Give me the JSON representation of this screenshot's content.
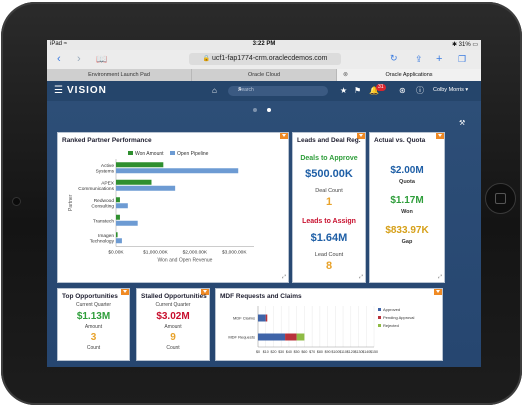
{
  "status_bar": {
    "device": "iPad",
    "time": "3:22 PM",
    "battery": "31%"
  },
  "browser": {
    "url": "ucf1-fap1774-crm.oraclecdemos.com"
  },
  "tabs": [
    {
      "label": "Environment Launch Pad"
    },
    {
      "label": "Oracle Cloud"
    },
    {
      "label": "Oracle Applications"
    }
  ],
  "app": {
    "logo": "VISION",
    "search_placeholder": "Search",
    "notifications": "31",
    "user": "Colby Morris"
  },
  "ranked": {
    "title": "Ranked Partner Performance",
    "legend": [
      "Won Amount",
      "Open Pipeline"
    ],
    "ylabel": "Partner",
    "xlabel": "Won and Open Revenue",
    "partners": [
      "Active Systems",
      "APEX Communications",
      "Redwood Consulting",
      "Transtech",
      "Imagen Technology"
    ],
    "ticks": [
      "$0.00K",
      "$1,000.00K",
      "$2,000.00K",
      "$3,000.00K"
    ]
  },
  "leads": {
    "title": "Leads and Deal Reg.",
    "deals_title": "Deals to Approve",
    "deals_amount": "$500.00K",
    "deals_count_label": "Deal Count",
    "deals_count": "1",
    "leads_title": "Leads to Assign",
    "leads_amount": "$1.64M",
    "leads_count_label": "Lead Count",
    "leads_count": "8"
  },
  "quota": {
    "title": "Actual vs. Quota",
    "quota_value": "$2.00M",
    "quota_label": "Quota",
    "won_value": "$1.17M",
    "won_label": "Won",
    "gap_value": "$833.97K",
    "gap_label": "Gap"
  },
  "top_opps": {
    "title": "Top Opportunities",
    "sub": "Current Quarter",
    "amount": "$1.13M",
    "amount_label": "Amount",
    "count": "3",
    "count_label": "Count"
  },
  "stalled": {
    "title": "Stalled Opportunities",
    "sub": "Current Quarter",
    "amount": "$3.02M",
    "amount_label": "Amount",
    "count": "9",
    "count_label": "Count"
  },
  "mdf": {
    "title": "MDF Requests and Claims",
    "rows": [
      "MDF Claims",
      "MDF Requests"
    ],
    "legend": [
      "Approved",
      "Pending Approval",
      "Rejected"
    ],
    "ticks": [
      "$0",
      "$10",
      "$20",
      "$30",
      "$40",
      "$50",
      "$60",
      "$70",
      "$80",
      "$90",
      "$100",
      "$110",
      "$120",
      "$130",
      "$140",
      "$150"
    ]
  },
  "chart_data": [
    {
      "type": "bar",
      "orientation": "horizontal",
      "title": "Ranked Partner Performance",
      "categories": [
        "Active Systems",
        "APEX Communications",
        "Redwood Consulting",
        "Transtech",
        "Imagen Technology"
      ],
      "series": [
        {
          "name": "Won Amount",
          "values": [
            1200,
            900,
            100,
            100,
            40
          ]
        },
        {
          "name": "Open Pipeline",
          "values": [
            3100,
            1500,
            300,
            550,
            150
          ]
        }
      ],
      "xlabel": "Won and Open Revenue",
      "ylabel": "Partner",
      "xlim": [
        0,
        3500
      ],
      "colors": {
        "Won Amount": "#2f8f2f",
        "Open Pipeline": "#6d9bd3"
      }
    },
    {
      "type": "bar",
      "orientation": "horizontal",
      "stacked": true,
      "title": "MDF Requests and Claims",
      "categories": [
        "MDF Claims",
        "MDF Requests"
      ],
      "series": [
        {
          "name": "Approved",
          "values": [
            10,
            35
          ]
        },
        {
          "name": "Pending Approval",
          "values": [
            2,
            15
          ]
        },
        {
          "name": "Rejected",
          "values": [
            0,
            10
          ]
        }
      ],
      "xlim": [
        0,
        150
      ],
      "colors": {
        "Approved": "#3f64a8",
        "Pending Approval": "#b8323b",
        "Rejected": "#8fbb45"
      }
    }
  ]
}
